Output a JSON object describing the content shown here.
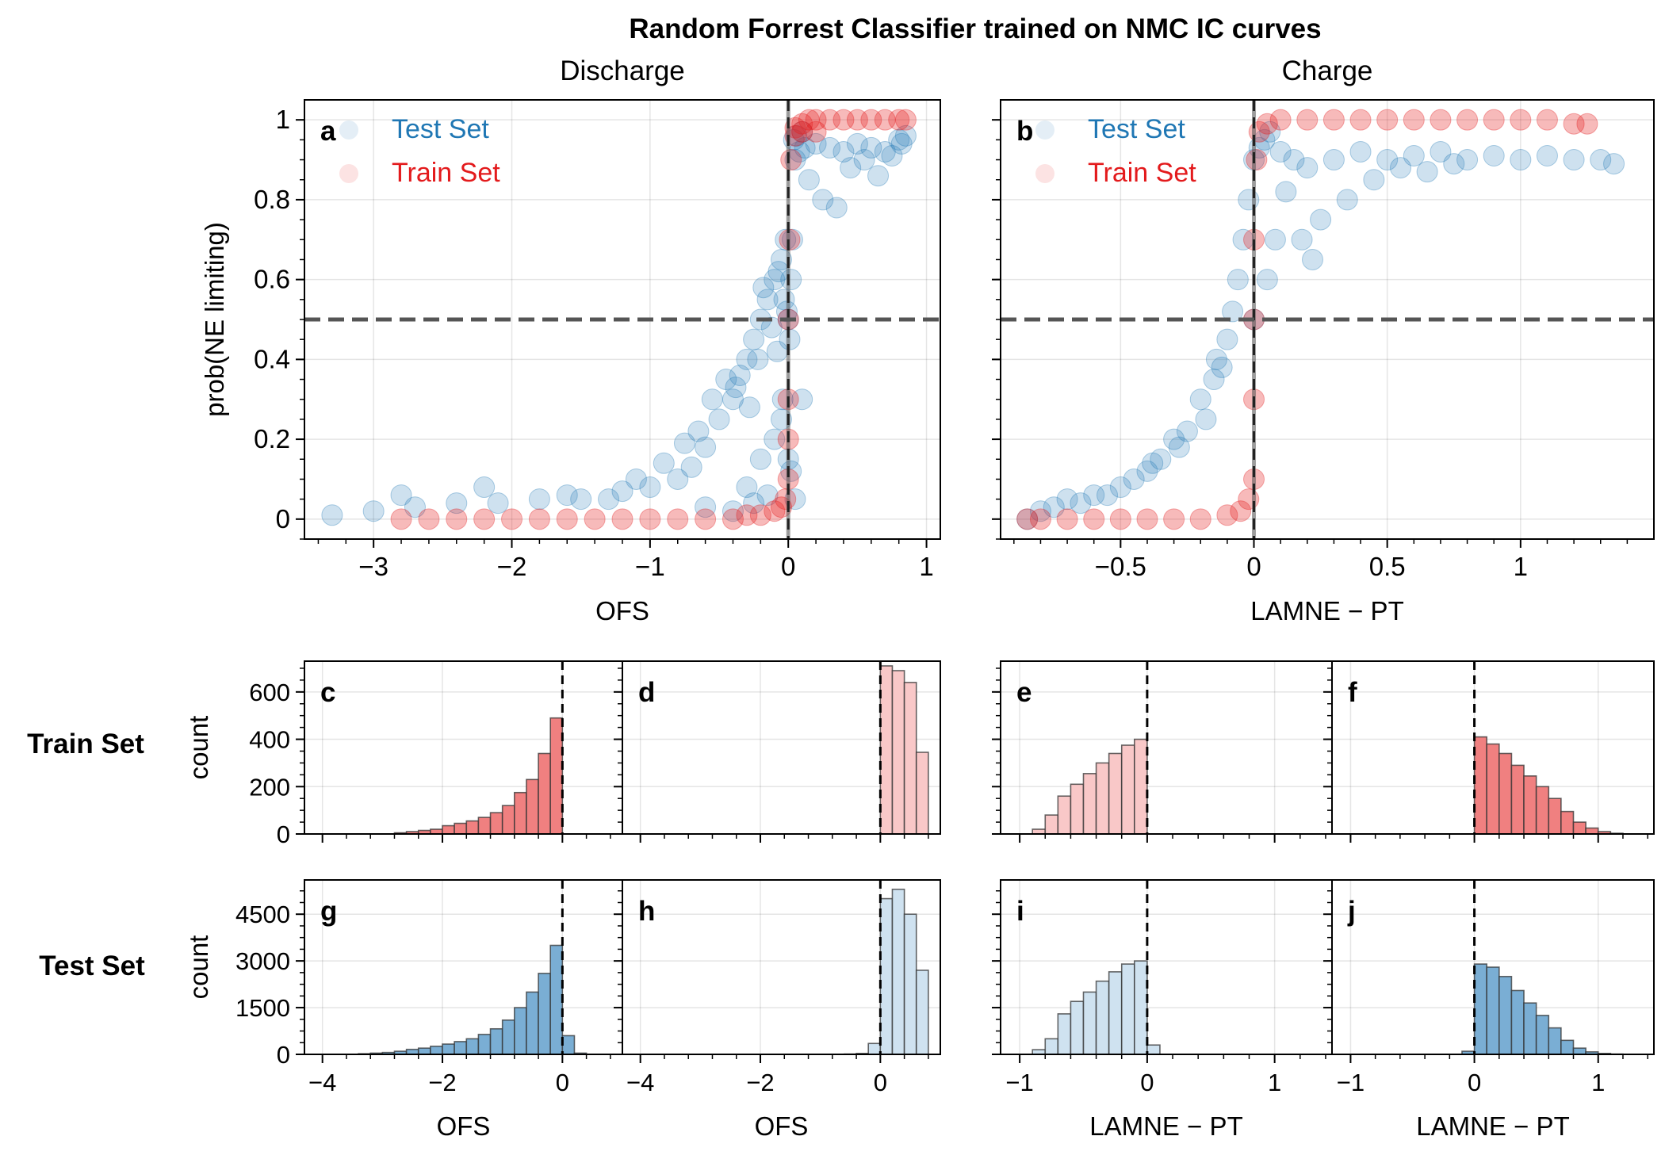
{
  "figure": {
    "suptitle": "Random Forrest Classifier trained on NMC IC curves",
    "row_labels": [
      "Train Set",
      "Test Set"
    ]
  },
  "colors": {
    "test": "#1f77b4",
    "train": "#e31a1c",
    "hist_red_dark": "#f08080",
    "hist_red_light": "#f9c8c8",
    "hist_blue_dark": "#7aaed4",
    "hist_blue_light": "#cfe2f0",
    "reference_line": "#555555"
  },
  "chart_data": [
    {
      "id": "a",
      "type": "scatter",
      "title": "Discharge",
      "panel_label": "a",
      "xlabel": "OFS",
      "ylabel": "prob(NE limiting)",
      "xlim": [
        -3.5,
        1.1
      ],
      "ylim": [
        -0.05,
        1.05
      ],
      "xticks": [
        -3,
        -2,
        -1,
        0,
        1
      ],
      "xticklabels": [
        "−3",
        "−2",
        "−1",
        "0",
        "1"
      ],
      "yticks": [
        0,
        0.2,
        0.4,
        0.6,
        0.8,
        1
      ],
      "yticklabels": [
        "0",
        "0.2",
        "0.4",
        "0.6",
        "0.8",
        "1"
      ],
      "grid": true,
      "legend": "top-left",
      "ref_lines": {
        "x": 0,
        "y": 0.5
      },
      "series": [
        {
          "name": "Test Set",
          "role": "test",
          "x": [
            -3.3,
            -3.0,
            -2.7,
            -2.4,
            -2.1,
            -1.8,
            -1.5,
            -1.2,
            -1.0,
            -0.8,
            -0.7,
            -0.6,
            -0.5,
            -0.4,
            -0.35,
            -0.3,
            -0.25,
            -0.2,
            -0.15,
            -0.1,
            -0.07,
            -0.05,
            -0.03,
            -0.01,
            0.0,
            0.01,
            0.03,
            0.05,
            0.08,
            0.12,
            0.2,
            0.3,
            0.4,
            0.5,
            0.6,
            0.7,
            0.8,
            0.85,
            -2.8,
            -2.2,
            -1.6,
            -1.3,
            -1.1,
            -0.9,
            -0.75,
            -0.65,
            -0.55,
            -0.45,
            -0.38,
            -0.28,
            -0.22,
            -0.18,
            -0.12,
            -0.08,
            -0.04,
            -0.02,
            0.02,
            0.04,
            0.06,
            0.1,
            0.15,
            0.25,
            0.35,
            0.45,
            0.55,
            0.65,
            0.75,
            0.82,
            -0.3,
            -0.2,
            -0.1,
            -0.05,
            0.02,
            0.05,
            0.1,
            -0.6,
            -0.4,
            -0.25,
            -0.15,
            0.0
          ],
          "y": [
            0.01,
            0.02,
            0.03,
            0.04,
            0.04,
            0.05,
            0.05,
            0.07,
            0.08,
            0.1,
            0.13,
            0.18,
            0.25,
            0.3,
            0.36,
            0.4,
            0.45,
            0.5,
            0.55,
            0.6,
            0.62,
            0.65,
            0.55,
            0.52,
            0.5,
            0.45,
            0.7,
            0.9,
            0.92,
            0.93,
            0.94,
            0.93,
            0.92,
            0.94,
            0.93,
            0.92,
            0.95,
            0.96,
            0.06,
            0.08,
            0.06,
            0.05,
            0.1,
            0.14,
            0.19,
            0.22,
            0.3,
            0.35,
            0.33,
            0.28,
            0.4,
            0.58,
            0.48,
            0.42,
            0.3,
            0.7,
            0.6,
            0.95,
            0.96,
            0.97,
            0.85,
            0.8,
            0.78,
            0.88,
            0.9,
            0.86,
            0.91,
            0.94,
            0.08,
            0.15,
            0.2,
            0.25,
            0.12,
            0.05,
            0.3,
            0.03,
            0.02,
            0.04,
            0.06,
            0.15
          ]
        },
        {
          "name": "Train Set",
          "role": "train",
          "x": [
            -2.8,
            -2.6,
            -2.4,
            -2.2,
            -2.0,
            -1.8,
            -1.6,
            -1.4,
            -1.2,
            -1.0,
            -0.8,
            -0.6,
            -0.4,
            -0.3,
            -0.2,
            -0.1,
            -0.05,
            -0.02,
            0.0,
            0.0,
            0.0,
            0.0,
            0.01,
            0.02,
            0.05,
            0.1,
            0.15,
            0.2,
            0.3,
            0.4,
            0.5,
            0.6,
            0.7,
            0.8,
            0.85,
            0.05,
            0.1,
            0.2
          ],
          "y": [
            0.0,
            0.0,
            0.0,
            0.0,
            0.0,
            0.0,
            0.0,
            0.0,
            0.0,
            0.0,
            0.0,
            0.0,
            0.0,
            0.01,
            0.01,
            0.02,
            0.03,
            0.05,
            0.1,
            0.2,
            0.3,
            0.5,
            0.7,
            0.9,
            0.98,
            0.99,
            1.0,
            1.0,
            1.0,
            1.0,
            1.0,
            1.0,
            1.0,
            1.0,
            1.0,
            0.96,
            0.97,
            0.97
          ]
        }
      ]
    },
    {
      "id": "b",
      "type": "scatter",
      "title": "Charge",
      "panel_label": "b",
      "xlabel": "LAMNE − PT",
      "ylabel": "",
      "xlim": [
        -0.95,
        1.5
      ],
      "ylim": [
        -0.05,
        1.05
      ],
      "xticks": [
        -0.5,
        0,
        0.5,
        1
      ],
      "xticklabels": [
        "−0.5",
        "0",
        "0.5",
        "1"
      ],
      "yticks": [
        0,
        0.2,
        0.4,
        0.6,
        0.8,
        1
      ],
      "yticklabels": [],
      "grid": true,
      "legend": "top-left",
      "ref_lines": {
        "x": 0,
        "y": 0.5
      },
      "series": [
        {
          "name": "Test Set",
          "role": "test",
          "x": [
            -0.85,
            -0.8,
            -0.7,
            -0.6,
            -0.5,
            -0.45,
            -0.4,
            -0.35,
            -0.3,
            -0.25,
            -0.2,
            -0.15,
            -0.12,
            -0.1,
            -0.08,
            -0.06,
            -0.04,
            -0.02,
            0.0,
            0.0,
            0.02,
            0.04,
            0.06,
            0.1,
            0.15,
            0.2,
            0.3,
            0.4,
            0.5,
            0.6,
            0.7,
            0.8,
            0.9,
            1.0,
            1.1,
            1.2,
            1.3,
            1.35,
            0.25,
            0.35,
            0.45,
            0.55,
            0.65,
            0.75,
            0.05,
            0.08,
            -0.75,
            -0.65,
            -0.55,
            -0.38,
            -0.28,
            -0.18,
            -0.14,
            0.12,
            0.18,
            0.22
          ],
          "y": [
            0.0,
            0.02,
            0.05,
            0.06,
            0.08,
            0.1,
            0.12,
            0.15,
            0.2,
            0.22,
            0.3,
            0.35,
            0.38,
            0.45,
            0.52,
            0.6,
            0.7,
            0.8,
            0.9,
            0.5,
            0.93,
            0.95,
            0.97,
            0.92,
            0.9,
            0.88,
            0.9,
            0.92,
            0.9,
            0.91,
            0.92,
            0.9,
            0.91,
            0.9,
            0.91,
            0.9,
            0.9,
            0.89,
            0.75,
            0.8,
            0.85,
            0.88,
            0.87,
            0.89,
            0.6,
            0.7,
            0.03,
            0.04,
            0.06,
            0.14,
            0.18,
            0.25,
            0.4,
            0.82,
            0.7,
            0.65
          ]
        },
        {
          "name": "Train Set",
          "role": "train",
          "x": [
            -0.85,
            -0.8,
            -0.7,
            -0.6,
            -0.5,
            -0.4,
            -0.3,
            -0.2,
            -0.1,
            -0.05,
            -0.02,
            0.0,
            0.0,
            0.0,
            0.0,
            0.01,
            0.02,
            0.05,
            0.1,
            0.2,
            0.3,
            0.4,
            0.5,
            0.6,
            0.7,
            0.8,
            0.9,
            1.0,
            1.1,
            1.2,
            1.25
          ],
          "y": [
            0.0,
            0.0,
            0.0,
            0.0,
            0.0,
            0.0,
            0.0,
            0.0,
            0.01,
            0.02,
            0.05,
            0.1,
            0.3,
            0.5,
            0.7,
            0.9,
            0.97,
            0.99,
            1.0,
            1.0,
            1.0,
            1.0,
            1.0,
            1.0,
            1.0,
            1.0,
            1.0,
            1.0,
            1.0,
            0.99,
            0.99
          ]
        }
      ]
    },
    {
      "id": "c",
      "type": "bar",
      "panel_label": "c",
      "row": "Train Set",
      "shade": "red_dark",
      "xlabel": "",
      "ylabel": "count",
      "xlim": [
        -4.3,
        1.0
      ],
      "ylim": [
        0,
        730
      ],
      "xticks": [
        -4,
        -2,
        0
      ],
      "xticklabels": [],
      "yticks": [
        0,
        200,
        400,
        600
      ],
      "yticklabels": [
        "0",
        "200",
        "400",
        "600"
      ],
      "bin_width": 0.2,
      "ref_line_x": 0,
      "grid": true,
      "bin_starts": [
        -2.8,
        -2.6,
        -2.4,
        -2.2,
        -2.0,
        -1.8,
        -1.6,
        -1.4,
        -1.2,
        -1.0,
        -0.8,
        -0.6,
        -0.4,
        -0.2
      ],
      "values": [
        5,
        10,
        15,
        20,
        35,
        45,
        55,
        70,
        90,
        120,
        175,
        230,
        340,
        490
      ]
    },
    {
      "id": "d",
      "type": "bar",
      "panel_label": "d",
      "row": "Train Set",
      "shade": "red_light",
      "xlabel": "",
      "ylabel": "",
      "xlim": [
        -4.3,
        1.0
      ],
      "ylim": [
        0,
        730
      ],
      "xticks": [
        -4,
        -2,
        0
      ],
      "xticklabels": [],
      "yticks": [
        0,
        200,
        400,
        600
      ],
      "yticklabels": [],
      "bin_width": 0.2,
      "ref_line_x": 0,
      "grid": true,
      "bin_starts": [
        0.0,
        0.2,
        0.4,
        0.6
      ],
      "values": [
        710,
        690,
        640,
        345
      ]
    },
    {
      "id": "e",
      "type": "bar",
      "panel_label": "e",
      "row": "Train Set",
      "shade": "red_light",
      "xlabel": "",
      "ylabel": "",
      "xlim": [
        -1.15,
        1.45
      ],
      "ylim": [
        0,
        730
      ],
      "xticks": [
        -1,
        0,
        1
      ],
      "xticklabels": [],
      "yticks": [
        0,
        200,
        400,
        600
      ],
      "yticklabels": [],
      "bin_width": 0.1,
      "ref_line_x": 0,
      "grid": true,
      "bin_starts": [
        -0.9,
        -0.8,
        -0.7,
        -0.6,
        -0.5,
        -0.4,
        -0.3,
        -0.2,
        -0.1
      ],
      "values": [
        20,
        80,
        160,
        210,
        255,
        300,
        340,
        375,
        400
      ]
    },
    {
      "id": "f",
      "type": "bar",
      "panel_label": "f",
      "row": "Train Set",
      "shade": "red_dark",
      "xlabel": "",
      "ylabel": "",
      "xlim": [
        -1.15,
        1.45
      ],
      "ylim": [
        0,
        730
      ],
      "xticks": [
        -1,
        0,
        1
      ],
      "xticklabels": [],
      "yticks": [
        0,
        200,
        400,
        600
      ],
      "yticklabels": [],
      "bin_width": 0.1,
      "ref_line_x": 0,
      "grid": true,
      "bin_starts": [
        0.0,
        0.1,
        0.2,
        0.3,
        0.4,
        0.5,
        0.6,
        0.7,
        0.8,
        0.9,
        1.0,
        1.1
      ],
      "values": [
        410,
        380,
        340,
        290,
        245,
        200,
        150,
        95,
        50,
        25,
        10,
        3
      ]
    },
    {
      "id": "g",
      "type": "bar",
      "panel_label": "g",
      "row": "Test Set",
      "shade": "blue_dark",
      "xlabel": "OFS",
      "ylabel": "count",
      "xlim": [
        -4.3,
        1.0
      ],
      "ylim": [
        0,
        5600
      ],
      "xticks": [
        -4,
        -2,
        0
      ],
      "xticklabels": [
        "−4",
        "−2",
        "0"
      ],
      "yticks": [
        0,
        1500,
        3000,
        4500
      ],
      "yticklabels": [
        "0",
        "1500",
        "3000",
        "4500"
      ],
      "bin_width": 0.2,
      "ref_line_x": 0,
      "grid": true,
      "bin_starts": [
        -3.4,
        -3.2,
        -3.0,
        -2.8,
        -2.6,
        -2.4,
        -2.2,
        -2.0,
        -1.8,
        -1.6,
        -1.4,
        -1.2,
        -1.0,
        -0.8,
        -0.6,
        -0.4,
        -0.2,
        0.0,
        0.2
      ],
      "values": [
        20,
        40,
        60,
        100,
        160,
        200,
        260,
        330,
        410,
        500,
        640,
        820,
        1100,
        1500,
        2000,
        2600,
        3500,
        600,
        40
      ]
    },
    {
      "id": "h",
      "type": "bar",
      "panel_label": "h",
      "row": "Test Set",
      "shade": "blue_light",
      "xlabel": "OFS",
      "ylabel": "",
      "xlim": [
        -4.3,
        1.0
      ],
      "ylim": [
        0,
        5600
      ],
      "xticks": [
        -4,
        -2,
        0
      ],
      "xticklabels": [
        "−4",
        "−2",
        "0"
      ],
      "yticks": [
        0,
        1500,
        3000,
        4500
      ],
      "yticklabels": [],
      "bin_width": 0.2,
      "ref_line_x": 0,
      "grid": true,
      "bin_starts": [
        -0.6,
        -0.4,
        -0.2,
        0.0,
        0.2,
        0.4,
        0.6
      ],
      "values": [
        10,
        30,
        350,
        5000,
        5300,
        4500,
        2700
      ]
    },
    {
      "id": "i",
      "type": "bar",
      "panel_label": "i",
      "row": "Test Set",
      "shade": "blue_light",
      "xlabel": "LAMNE − PT",
      "ylabel": "",
      "xlim": [
        -1.15,
        1.45
      ],
      "ylim": [
        0,
        5600
      ],
      "xticks": [
        -1,
        0,
        1
      ],
      "xticklabels": [
        "−1",
        "0",
        "1"
      ],
      "yticks": [
        0,
        1500,
        3000,
        4500
      ],
      "yticklabels": [],
      "bin_width": 0.1,
      "ref_line_x": 0,
      "grid": true,
      "bin_starts": [
        -0.9,
        -0.8,
        -0.7,
        -0.6,
        -0.5,
        -0.4,
        -0.3,
        -0.2,
        -0.1,
        0.0
      ],
      "values": [
        150,
        500,
        1300,
        1700,
        2000,
        2350,
        2650,
        2900,
        3000,
        300
      ]
    },
    {
      "id": "j",
      "type": "bar",
      "panel_label": "j",
      "row": "Test Set",
      "shade": "blue_dark",
      "xlabel": "LAMNE − PT",
      "ylabel": "",
      "xlim": [
        -1.15,
        1.45
      ],
      "ylim": [
        0,
        5600
      ],
      "xticks": [
        -1,
        0,
        1
      ],
      "xticklabels": [
        "−1",
        "0",
        "1"
      ],
      "yticks": [
        0,
        1500,
        3000,
        4500
      ],
      "yticklabels": [],
      "bin_width": 0.1,
      "ref_line_x": 0,
      "grid": true,
      "bin_starts": [
        -0.1,
        0.0,
        0.1,
        0.2,
        0.3,
        0.4,
        0.5,
        0.6,
        0.7,
        0.8,
        0.9,
        1.0,
        1.1
      ],
      "values": [
        100,
        2900,
        2800,
        2500,
        2050,
        1650,
        1250,
        850,
        450,
        200,
        80,
        30,
        10
      ]
    }
  ]
}
